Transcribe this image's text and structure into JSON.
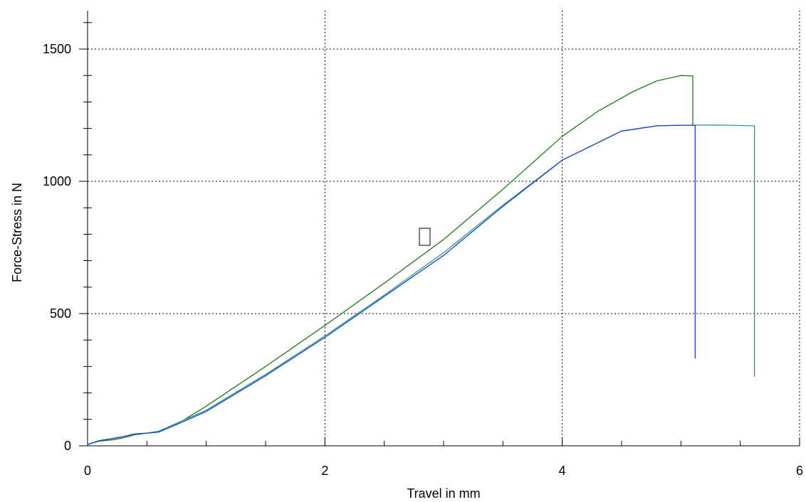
{
  "chart_data": {
    "type": "line",
    "title": "",
    "xlabel": "Travel in mm",
    "ylabel": "Force-Stress in N",
    "xlim": [
      0,
      6
    ],
    "ylim": [
      0,
      1500
    ],
    "xticks": [
      0,
      2,
      4,
      6
    ],
    "yticks": [
      0,
      500,
      1000,
      1500
    ],
    "x_minor_step": 0.5,
    "y_minor_step": 100,
    "grid": true,
    "legend": "none",
    "series": [
      {
        "color": "#1a7f1a",
        "x": [
          0,
          0.1,
          0.2,
          0.3,
          0.4,
          0.5,
          0.6,
          0.8,
          1.0,
          1.5,
          2.0,
          2.5,
          3.0,
          3.5,
          4.0,
          4.3,
          4.6,
          4.8,
          5.0,
          5.1,
          5.1
        ],
        "y": [
          5,
          18,
          22,
          30,
          42,
          48,
          55,
          95,
          150,
          300,
          455,
          615,
          780,
          970,
          1170,
          1265,
          1340,
          1380,
          1400,
          1398,
          1210
        ]
      },
      {
        "color": "#2a9d8f",
        "x": [
          0,
          0.1,
          0.2,
          0.3,
          0.4,
          0.5,
          0.6,
          0.8,
          1.0,
          1.5,
          2.0,
          2.5,
          3.0,
          3.5,
          4.0,
          4.5,
          4.8,
          5.0,
          5.2,
          5.4,
          5.6,
          5.62,
          5.62
        ],
        "y": [
          5,
          20,
          27,
          35,
          45,
          48,
          55,
          95,
          135,
          270,
          415,
          570,
          730,
          910,
          1080,
          1190,
          1210,
          1212,
          1213,
          1212,
          1210,
          1210,
          260
        ]
      },
      {
        "color": "#1a3fd6",
        "x": [
          0,
          0.1,
          0.2,
          0.3,
          0.4,
          0.5,
          0.6,
          0.8,
          1.0,
          1.5,
          2.0,
          2.5,
          3.0,
          3.5,
          4.0,
          4.5,
          4.8,
          5.0,
          5.1,
          5.12,
          5.12
        ],
        "y": [
          5,
          20,
          27,
          35,
          45,
          48,
          52,
          90,
          130,
          265,
          410,
          565,
          720,
          905,
          1080,
          1190,
          1210,
          1212,
          1212,
          1210,
          330
        ]
      }
    ]
  }
}
